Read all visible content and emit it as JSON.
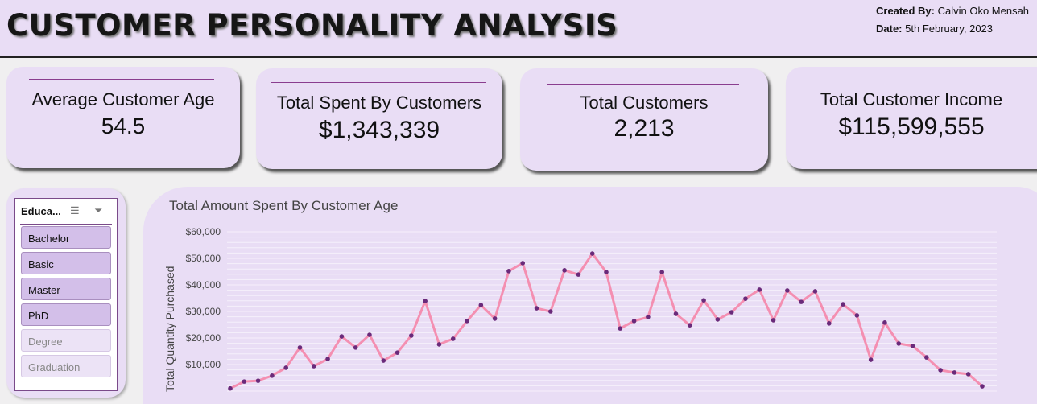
{
  "header": {
    "title": "CUSTOMER PERSONALITY ANALYSIS",
    "created_by_label": "Created By:",
    "created_by": "Calvin Oko Mensah",
    "date_label": "Date:",
    "date": "5th February, 2023"
  },
  "kpis": [
    {
      "label": "Average Customer Age",
      "value": "54.5"
    },
    {
      "label": "Total Spent By Customers",
      "value": "$1,343,339"
    },
    {
      "label": "Total Customers",
      "value": "2,213"
    },
    {
      "label": "Total Customer Income",
      "value": "$115,599,555"
    }
  ],
  "slicer": {
    "title": "Educa...",
    "multiselect_icon": "multi-select-icon",
    "clear_filter_icon": "clear-filter-icon",
    "items": [
      {
        "label": "Bachelor",
        "selected": true
      },
      {
        "label": "Basic",
        "selected": true
      },
      {
        "label": "Master",
        "selected": true
      },
      {
        "label": "PhD",
        "selected": true
      },
      {
        "label": "Degree",
        "selected": false
      },
      {
        "label": "Graduation",
        "selected": false
      }
    ]
  },
  "chart_data": {
    "type": "line",
    "title": "Total Amount Spent By Customer Age",
    "ylabel": "Total Quantity Purchased",
    "xlabel": "",
    "ylim": [
      0,
      60000
    ],
    "yticks": [
      "$10,000",
      "$20,000",
      "$30,000",
      "$40,000",
      "$50,000",
      "$60,000"
    ],
    "grid": true,
    "line_color": "#f48fb1",
    "marker_color": "#6a2a7a",
    "values": [
      1000,
      3600,
      3900,
      5800,
      8800,
      16400,
      9400,
      12100,
      20600,
      16400,
      21200,
      11500,
      14500,
      20900,
      33900,
      17600,
      19700,
      26400,
      32400,
      27300,
      45200,
      48200,
      31200,
      30000,
      45500,
      43900,
      51800,
      44800,
      23600,
      26400,
      27900,
      44800,
      29100,
      24800,
      34200,
      27000,
      29700,
      34800,
      38200,
      26700,
      37900,
      33600,
      37600,
      25500,
      32700,
      28500,
      11800,
      25800,
      17900,
      17000,
      12700,
      7900,
      7000,
      6400,
      1800
    ]
  }
}
